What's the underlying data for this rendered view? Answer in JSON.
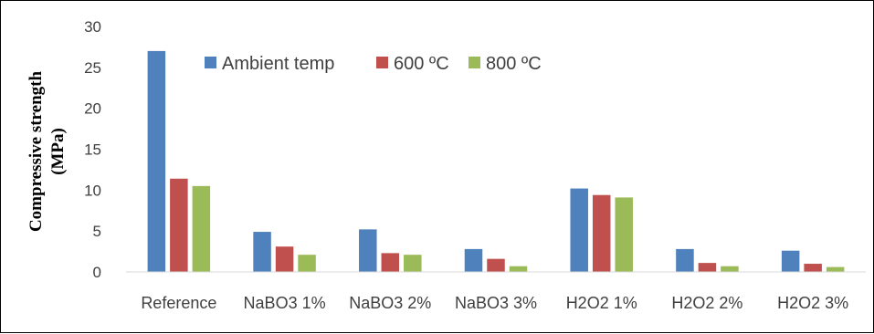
{
  "chart_data": {
    "type": "bar",
    "title": "",
    "xlabel": "",
    "ylabel_lines": [
      "Compressive strength",
      "(MPa)"
    ],
    "ylim": [
      0,
      30
    ],
    "yticks": [
      "0",
      "5",
      "10",
      "15",
      "20",
      "25",
      "30"
    ],
    "grid": false,
    "legend_position": "top-center",
    "categories": [
      "Reference",
      "NaBO3 1%",
      "NaBO3 2%",
      "NaBO3 3%",
      "H2O2 1%",
      "H2O2 2%",
      "H2O2 3%"
    ],
    "series": [
      {
        "name": "Ambient temp",
        "color": "#4F81BD",
        "values": [
          27.0,
          4.9,
          5.2,
          2.8,
          10.2,
          2.8,
          2.6
        ]
      },
      {
        "name": "600 ºC",
        "color": "#C0504D",
        "values": [
          11.4,
          3.1,
          2.3,
          1.6,
          9.4,
          1.1,
          1.0
        ]
      },
      {
        "name": "800 ºC",
        "color": "#9BBB59",
        "values": [
          10.5,
          2.1,
          2.1,
          0.7,
          9.1,
          0.7,
          0.6
        ]
      }
    ]
  }
}
